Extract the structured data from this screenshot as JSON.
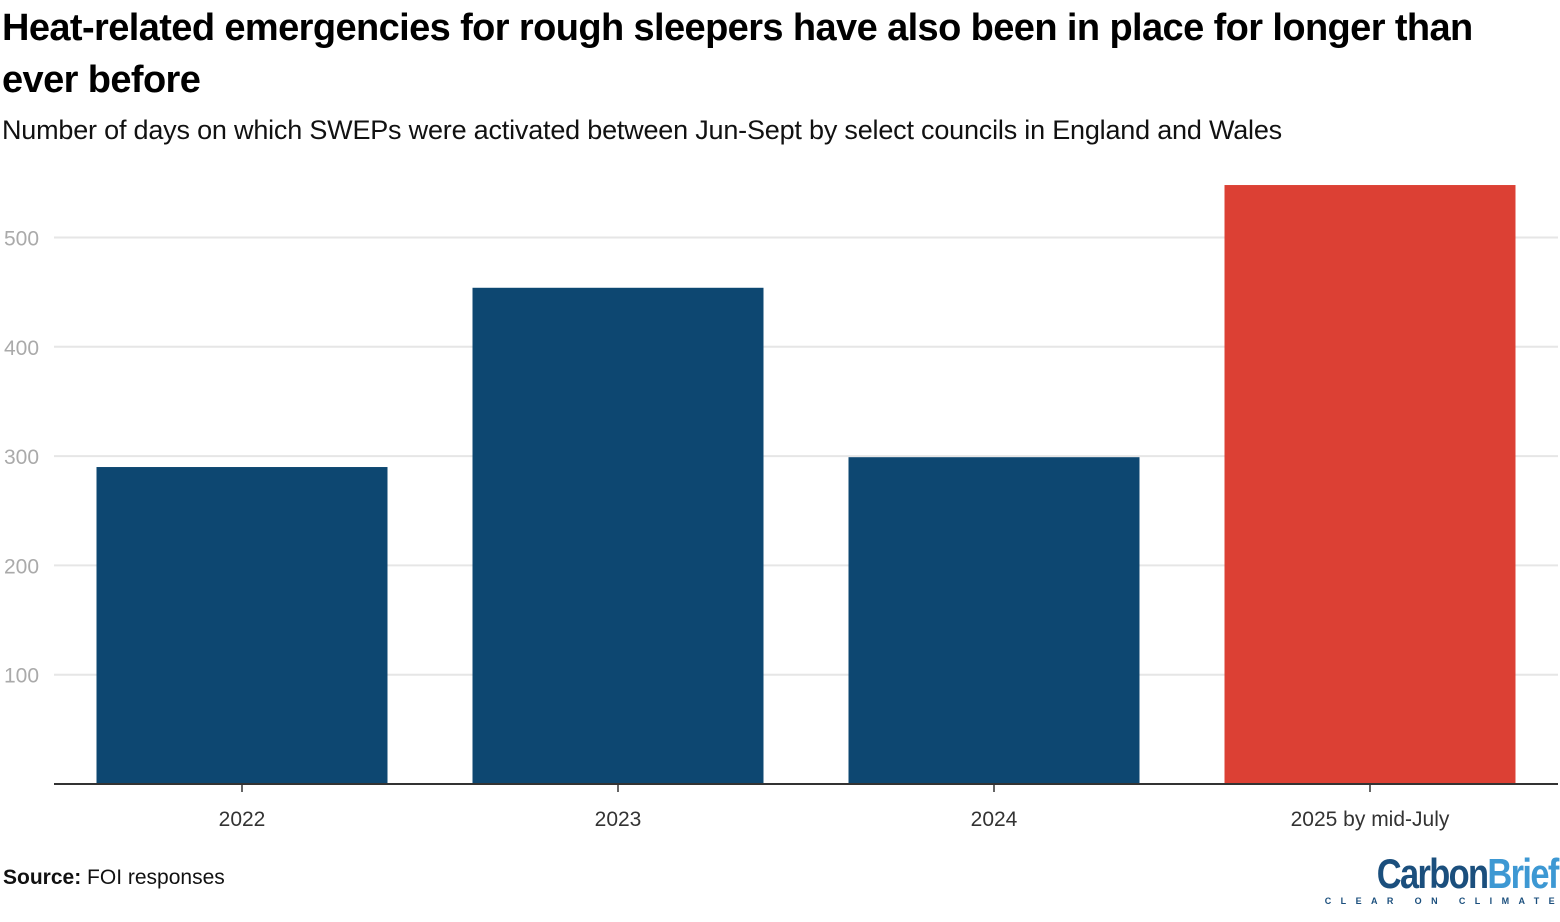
{
  "header": {
    "title": "Heat-related emergencies for rough sleepers have also been in place for longer than ever before",
    "subtitle": "Number of days on which SWEPs were activated between Jun-Sept by select councils in England and Wales"
  },
  "footer": {
    "source_label": "Source:",
    "source_text": "FOI responses"
  },
  "logo": {
    "word_1": "Carbon",
    "word_2": "Brief",
    "tagline": "CLEAR ON CLIMATE"
  },
  "colors": {
    "default_bar": "#0d4771",
    "highlight_bar": "#dc4034",
    "gridline": "#e6e6e6",
    "axis": "#333333"
  },
  "chart_data": {
    "type": "bar",
    "title": "Heat-related emergencies for rough sleepers have also been in place for longer than ever before",
    "subtitle": "Number of days on which SWEPs were activated between Jun-Sept by select councils in England and Wales",
    "xlabel": "",
    "ylabel": "",
    "categories": [
      "2022",
      "2023",
      "2024",
      "2025 by mid-July"
    ],
    "values": [
      290,
      454,
      299,
      548
    ],
    "highlight": [
      false,
      false,
      false,
      true
    ],
    "ylim": [
      0,
      550
    ],
    "yticks": [
      100,
      200,
      300,
      400,
      500
    ],
    "grid": true,
    "legend": "none"
  }
}
